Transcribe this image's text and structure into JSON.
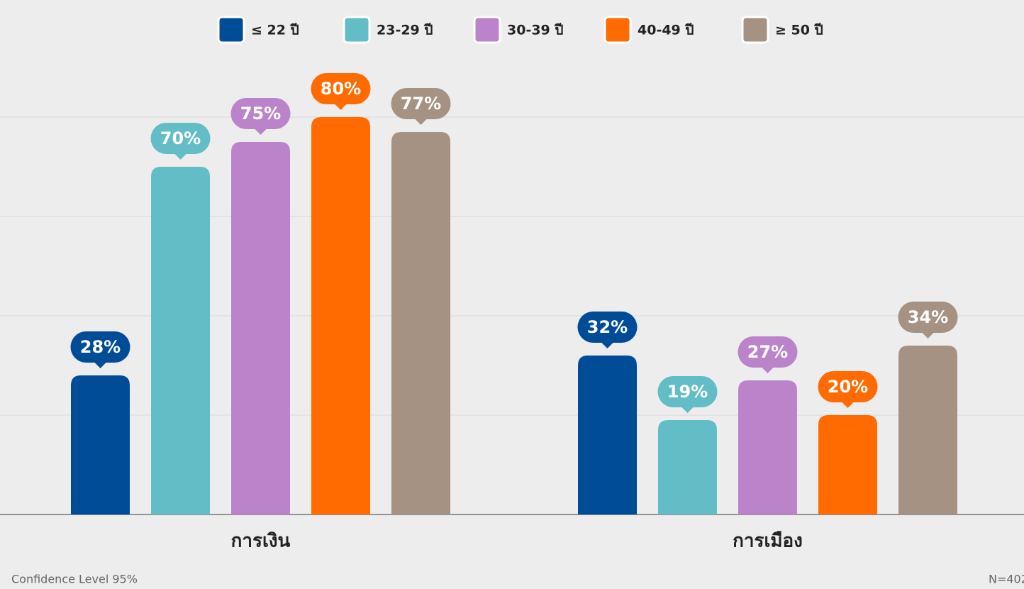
{
  "chart_data": {
    "type": "bar",
    "categories": [
      "การเงิน",
      "การเมือง"
    ],
    "series": [
      {
        "name": "≤ 22 ปี",
        "color": "#004c97",
        "values": [
          28,
          32
        ],
        "value_labels": [
          "28%",
          "32%"
        ]
      },
      {
        "name": "23-29 ปี",
        "color": "#62bdc6",
        "values": [
          70,
          19
        ],
        "value_labels": [
          "70%",
          "19%"
        ]
      },
      {
        "name": "30-39 ปี",
        "color": "#bb84ca",
        "values": [
          75,
          27
        ],
        "value_labels": [
          "75%",
          "27%"
        ]
      },
      {
        "name": "40-49 ปี",
        "color": "#ff6b00",
        "values": [
          80,
          20
        ],
        "value_labels": [
          "80%",
          "20%"
        ]
      },
      {
        "name": "≥ 50 ปี",
        "color": "#a69282",
        "values": [
          77,
          34
        ],
        "value_labels": [
          "77%",
          "34%"
        ]
      }
    ],
    "ylim": [
      0,
      80
    ],
    "yticks": [
      0,
      20,
      40,
      60,
      80
    ],
    "grid": true,
    "legend": "top",
    "footnote_left": "Confidence Level 95%",
    "footnote_right": "N=402"
  }
}
